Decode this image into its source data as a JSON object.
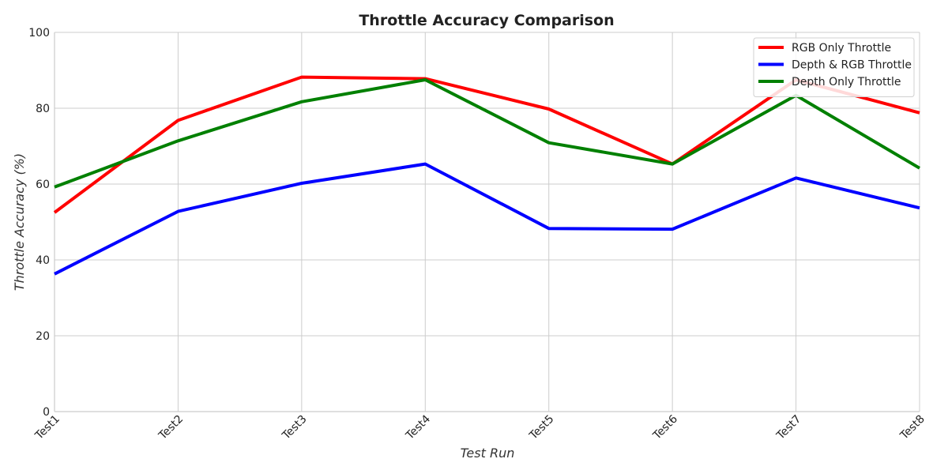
{
  "chart_data": {
    "type": "line",
    "title": "Throttle Accuracy Comparison",
    "xlabel": "Test Run",
    "ylabel": "Throttle Accuracy (%)",
    "categories": [
      "Test1",
      "Test2",
      "Test3",
      "Test4",
      "Test5",
      "Test6",
      "Test7",
      "Test8"
    ],
    "ylim": [
      0,
      100
    ],
    "yticks": [
      0,
      20,
      40,
      60,
      80,
      100
    ],
    "grid": true,
    "legend_position": "top-right",
    "series": [
      {
        "name": "RGB Only Throttle",
        "color": "#ff0000",
        "values": [
          52.5,
          76.8,
          88.2,
          87.8,
          79.8,
          65.3,
          87.5,
          78.8
        ]
      },
      {
        "name": "Depth & RGB Throttle",
        "color": "#0000ff",
        "values": [
          36.3,
          52.8,
          60.2,
          65.3,
          48.3,
          48.1,
          61.6,
          53.7
        ]
      },
      {
        "name": "Depth Only Throttle",
        "color": "#008000",
        "values": [
          59.2,
          71.4,
          81.7,
          87.5,
          70.9,
          65.3,
          83.4,
          64.2
        ]
      }
    ]
  }
}
